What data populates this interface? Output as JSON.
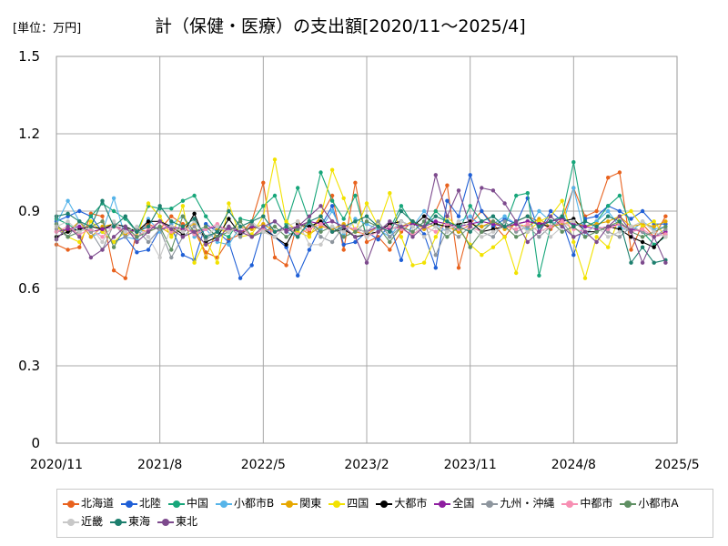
{
  "header": {
    "unit_label": "[単位：万円]",
    "title": "計（保健・医療）の支出額[2020/11～2025/4]"
  },
  "chart_data": {
    "type": "line",
    "title": "計（保健・医療）の支出額[2020/11～2025/4]",
    "unit": "[単位：万円]",
    "xlabel": "",
    "ylabel": "",
    "ylim": [
      0,
      1.5
    ],
    "yticks": [
      "0",
      "0.3",
      "0.6",
      "0.9",
      "1.2",
      "1.5"
    ],
    "xticks": [
      "2020/11",
      "2021/8",
      "2022/5",
      "2023/2",
      "2023/11",
      "2024/8",
      "2025/5"
    ],
    "grid": true,
    "legend_position": "bottom",
    "x": [
      "2020/11",
      "2020/12",
      "2021/1",
      "2021/2",
      "2021/3",
      "2021/4",
      "2021/5",
      "2021/6",
      "2021/7",
      "2021/8",
      "2021/9",
      "2021/10",
      "2021/11",
      "2021/12",
      "2022/1",
      "2022/2",
      "2022/3",
      "2022/4",
      "2022/5",
      "2022/6",
      "2022/7",
      "2022/8",
      "2022/9",
      "2022/10",
      "2022/11",
      "2022/12",
      "2023/1",
      "2023/2",
      "2023/3",
      "2023/4",
      "2023/5",
      "2023/6",
      "2023/7",
      "2023/8",
      "2023/9",
      "2023/10",
      "2023/11",
      "2023/12",
      "2024/1",
      "2024/2",
      "2024/3",
      "2024/4",
      "2024/5",
      "2024/6",
      "2024/7",
      "2024/8",
      "2024/9",
      "2024/10",
      "2024/11",
      "2024/12",
      "2025/1",
      "2025/2",
      "2025/3",
      "2025/4"
    ],
    "series": [
      {
        "name": "北海道",
        "color": "#e8621e",
        "values": [
          0.77,
          0.75,
          0.76,
          0.89,
          0.88,
          0.67,
          0.64,
          0.82,
          0.85,
          0.83,
          0.88,
          0.85,
          0.82,
          0.74,
          0.72,
          0.79,
          0.81,
          0.86,
          1.01,
          0.72,
          0.69,
          0.86,
          0.82,
          0.88,
          0.96,
          0.75,
          1.01,
          0.78,
          0.8,
          0.75,
          0.82,
          0.86,
          0.84,
          0.9,
          1.0,
          0.68,
          0.85,
          0.9,
          0.85,
          0.8,
          0.86,
          0.88,
          0.86,
          0.83,
          0.87,
          0.99,
          0.88,
          0.9,
          1.03,
          1.05,
          0.75,
          0.85,
          0.8,
          0.88
        ]
      },
      {
        "name": "北陸",
        "color": "#1f5fd6",
        "values": [
          0.86,
          0.88,
          0.9,
          0.88,
          0.82,
          0.78,
          0.8,
          0.74,
          0.75,
          0.83,
          0.84,
          0.73,
          0.71,
          0.85,
          0.82,
          0.78,
          0.64,
          0.69,
          0.84,
          0.8,
          0.76,
          0.65,
          0.75,
          0.84,
          0.92,
          0.77,
          0.78,
          0.82,
          0.79,
          0.85,
          0.71,
          0.86,
          0.81,
          0.68,
          0.94,
          0.88,
          1.04,
          0.9,
          0.84,
          0.87,
          0.85,
          0.95,
          0.82,
          0.9,
          0.86,
          0.73,
          0.87,
          0.88,
          0.92,
          0.9,
          0.87,
          0.9,
          0.85,
          0.85
        ]
      },
      {
        "name": "中国",
        "color": "#17a67a",
        "values": [
          0.87,
          0.85,
          0.82,
          0.88,
          0.93,
          0.9,
          0.87,
          0.82,
          0.92,
          0.91,
          0.91,
          0.94,
          0.96,
          0.88,
          0.82,
          0.8,
          0.87,
          0.86,
          0.92,
          0.96,
          0.85,
          0.99,
          0.86,
          1.05,
          0.94,
          0.87,
          0.96,
          0.8,
          0.84,
          0.83,
          0.92,
          0.85,
          0.84,
          0.9,
          0.86,
          0.82,
          0.92,
          0.86,
          0.88,
          0.84,
          0.96,
          0.97,
          0.65,
          0.84,
          0.88,
          1.09,
          0.84,
          0.86,
          0.92,
          0.96,
          0.84,
          0.82,
          0.77,
          0.8
        ]
      },
      {
        "name": "小都市B",
        "color": "#56b4e9",
        "values": [
          0.85,
          0.94,
          0.86,
          0.8,
          0.82,
          0.95,
          0.8,
          0.79,
          0.87,
          0.82,
          0.85,
          0.88,
          0.8,
          0.83,
          0.78,
          0.77,
          0.84,
          0.8,
          0.83,
          0.86,
          0.82,
          0.8,
          0.85,
          0.83,
          0.9,
          0.81,
          0.87,
          0.85,
          0.83,
          0.8,
          0.86,
          0.84,
          0.9,
          0.85,
          0.82,
          0.86,
          0.88,
          0.84,
          0.85,
          0.88,
          0.85,
          0.83,
          0.9,
          0.86,
          0.84,
          0.99,
          0.8,
          0.86,
          0.9,
          0.84,
          0.82,
          0.86,
          0.83,
          0.84
        ]
      },
      {
        "name": "関東",
        "color": "#e6a700",
        "values": [
          0.84,
          0.82,
          0.86,
          0.8,
          0.84,
          0.85,
          0.81,
          0.83,
          0.82,
          0.84,
          0.81,
          0.83,
          0.85,
          0.72,
          0.83,
          0.82,
          0.84,
          0.83,
          0.85,
          0.82,
          0.83,
          0.84,
          0.81,
          0.84,
          0.83,
          0.85,
          0.82,
          0.81,
          0.84,
          0.83,
          0.84,
          0.86,
          0.83,
          0.85,
          0.84,
          0.82,
          0.85,
          0.84,
          0.86,
          0.83,
          0.85,
          0.84,
          0.87,
          0.84,
          0.85,
          0.86,
          0.84,
          0.85,
          0.86,
          0.88,
          0.84,
          0.85,
          0.84,
          0.86
        ]
      },
      {
        "name": "四国",
        "color": "#f2e200",
        "values": [
          0.84,
          0.8,
          0.78,
          0.86,
          0.82,
          0.78,
          0.82,
          0.8,
          0.93,
          0.88,
          0.8,
          0.92,
          0.7,
          0.79,
          0.7,
          0.93,
          0.8,
          0.81,
          0.88,
          1.1,
          0.86,
          0.82,
          0.8,
          0.88,
          1.06,
          0.95,
          0.82,
          0.93,
          0.84,
          0.97,
          0.8,
          0.69,
          0.7,
          0.8,
          0.88,
          0.83,
          0.77,
          0.73,
          0.76,
          0.8,
          0.66,
          0.82,
          0.86,
          0.88,
          0.94,
          0.78,
          0.64,
          0.8,
          0.76,
          0.88,
          0.9,
          0.84,
          0.86,
          0.8
        ]
      },
      {
        "name": "大都市",
        "color": "#000000",
        "values": [
          0.8,
          0.82,
          0.83,
          0.84,
          0.83,
          0.85,
          0.84,
          0.82,
          0.86,
          0.86,
          0.84,
          0.81,
          0.89,
          0.78,
          0.8,
          0.87,
          0.81,
          0.84,
          0.83,
          0.8,
          0.77,
          0.85,
          0.84,
          0.86,
          0.82,
          0.83,
          0.8,
          0.81,
          0.82,
          0.85,
          0.86,
          0.84,
          0.88,
          0.85,
          0.84,
          0.85,
          0.86,
          0.82,
          0.83,
          0.84,
          0.85,
          0.86,
          0.85,
          0.84,
          0.86,
          0.87,
          0.82,
          0.82,
          0.84,
          0.83,
          0.8,
          0.78,
          0.76,
          0.81
        ]
      },
      {
        "name": "全国",
        "color": "#8e1ea0",
        "values": [
          0.82,
          0.83,
          0.84,
          0.82,
          0.83,
          0.84,
          0.83,
          0.82,
          0.84,
          0.83,
          0.84,
          0.83,
          0.82,
          0.83,
          0.84,
          0.83,
          0.82,
          0.84,
          0.83,
          0.82,
          0.83,
          0.84,
          0.86,
          0.85,
          0.86,
          0.84,
          0.83,
          0.82,
          0.84,
          0.83,
          0.84,
          0.85,
          0.84,
          0.86,
          0.85,
          0.84,
          0.85,
          0.86,
          0.85,
          0.84,
          0.85,
          0.86,
          0.85,
          0.86,
          0.87,
          0.85,
          0.84,
          0.83,
          0.84,
          0.85,
          0.83,
          0.82,
          0.8,
          0.82
        ]
      },
      {
        "name": "九州・沖縄",
        "color": "#8e969e",
        "values": [
          0.83,
          0.8,
          0.86,
          0.82,
          0.75,
          0.85,
          0.8,
          0.83,
          0.78,
          0.83,
          0.72,
          0.8,
          0.84,
          0.79,
          0.82,
          0.84,
          0.8,
          0.85,
          0.82,
          0.8,
          0.84,
          0.83,
          0.86,
          0.8,
          0.78,
          0.84,
          0.83,
          0.82,
          0.86,
          0.8,
          0.84,
          0.82,
          0.86,
          0.73,
          0.83,
          0.8,
          0.84,
          0.82,
          0.8,
          0.86,
          0.82,
          0.84,
          0.8,
          0.84,
          0.86,
          0.8,
          0.82,
          0.84,
          0.82,
          0.8,
          0.84,
          0.82,
          0.8,
          0.83
        ]
      },
      {
        "name": "中都市",
        "color": "#f78fb3",
        "values": [
          0.82,
          0.84,
          0.81,
          0.83,
          0.8,
          0.84,
          0.82,
          0.8,
          0.83,
          0.86,
          0.82,
          0.84,
          0.81,
          0.83,
          0.85,
          0.82,
          0.84,
          0.8,
          0.83,
          0.82,
          0.84,
          0.81,
          0.83,
          0.85,
          0.82,
          0.84,
          0.83,
          0.8,
          0.82,
          0.84,
          0.83,
          0.81,
          0.84,
          0.82,
          0.85,
          0.83,
          0.84,
          0.82,
          0.86,
          0.84,
          0.83,
          0.85,
          0.82,
          0.84,
          0.86,
          0.83,
          0.82,
          0.84,
          0.83,
          0.85,
          0.82,
          0.83,
          0.8,
          0.81
        ]
      },
      {
        "name": "小都市A",
        "color": "#5f8f63",
        "values": [
          0.85,
          0.8,
          0.82,
          0.84,
          0.86,
          0.76,
          0.84,
          0.8,
          0.82,
          0.84,
          0.75,
          0.88,
          0.82,
          0.84,
          0.8,
          0.82,
          0.86,
          0.8,
          0.82,
          0.84,
          0.8,
          0.83,
          0.86,
          0.82,
          0.84,
          0.8,
          0.82,
          0.86,
          0.84,
          0.78,
          0.84,
          0.82,
          0.86,
          0.84,
          0.8,
          0.84,
          0.76,
          0.82,
          0.86,
          0.84,
          0.8,
          0.82,
          0.84,
          0.86,
          0.82,
          0.84,
          0.8,
          0.82,
          0.84,
          0.86,
          0.82,
          0.8,
          0.82,
          0.84
        ]
      },
      {
        "name": "近畿",
        "color": "#c8c8c8",
        "values": [
          0.84,
          0.86,
          0.82,
          0.84,
          0.78,
          0.86,
          0.82,
          0.84,
          0.8,
          0.72,
          0.84,
          0.82,
          0.86,
          0.8,
          0.84,
          0.82,
          0.84,
          0.86,
          0.82,
          0.8,
          0.84,
          0.86,
          0.77,
          0.77,
          0.84,
          0.82,
          0.86,
          0.8,
          0.84,
          0.82,
          0.86,
          0.84,
          0.8,
          0.84,
          0.82,
          0.86,
          0.84,
          0.8,
          0.82,
          0.84,
          0.86,
          0.82,
          0.84,
          0.8,
          0.84,
          0.86,
          0.82,
          0.84,
          0.8,
          0.82,
          0.84,
          0.86,
          0.82,
          0.8
        ]
      },
      {
        "name": "東海",
        "color": "#1d7f6e",
        "values": [
          0.88,
          0.89,
          0.86,
          0.84,
          0.94,
          0.84,
          0.88,
          0.82,
          0.84,
          0.92,
          0.86,
          0.84,
          0.87,
          0.8,
          0.82,
          0.9,
          0.84,
          0.86,
          0.88,
          0.82,
          0.84,
          0.8,
          0.86,
          0.88,
          0.82,
          0.84,
          0.86,
          0.88,
          0.84,
          0.82,
          0.9,
          0.86,
          0.84,
          0.88,
          0.86,
          0.84,
          0.82,
          0.86,
          0.88,
          0.84,
          0.86,
          0.88,
          0.84,
          0.86,
          0.88,
          0.84,
          0.86,
          0.84,
          0.88,
          0.86,
          0.7,
          0.76,
          0.7,
          0.71
        ]
      },
      {
        "name": "東北",
        "color": "#7d4a8d",
        "values": [
          0.79,
          0.84,
          0.8,
          0.72,
          0.75,
          0.8,
          0.84,
          0.78,
          0.82,
          0.86,
          0.83,
          0.8,
          0.82,
          0.77,
          0.79,
          0.84,
          0.82,
          0.8,
          0.84,
          0.86,
          0.82,
          0.84,
          0.88,
          0.92,
          0.86,
          0.84,
          0.8,
          0.7,
          0.82,
          0.86,
          0.84,
          0.8,
          0.84,
          1.04,
          0.88,
          0.98,
          0.84,
          0.99,
          0.98,
          0.93,
          0.86,
          0.78,
          0.82,
          0.88,
          0.84,
          0.8,
          0.82,
          0.78,
          0.84,
          0.88,
          0.82,
          0.7,
          0.8,
          0.7
        ]
      }
    ]
  }
}
